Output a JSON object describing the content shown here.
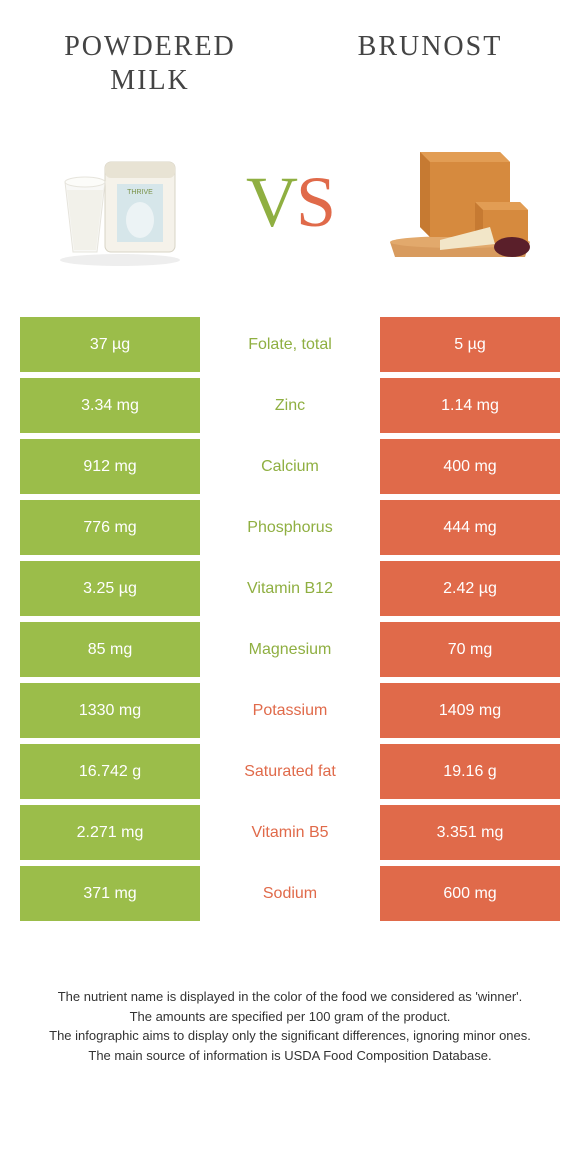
{
  "colors": {
    "left": "#9bbd4a",
    "right": "#e06a4a",
    "leftText": "#8faf41",
    "rightText": "#e06a4a",
    "bg": "#ffffff"
  },
  "header": {
    "leftTitle": "Powdered milk",
    "rightTitle": "Brunost",
    "vsV": "V",
    "vsS": "S"
  },
  "rows": [
    {
      "left": "37 µg",
      "label": "Folate, total",
      "right": "5 µg",
      "winner": "left"
    },
    {
      "left": "3.34 mg",
      "label": "Zinc",
      "right": "1.14 mg",
      "winner": "left"
    },
    {
      "left": "912 mg",
      "label": "Calcium",
      "right": "400 mg",
      "winner": "left"
    },
    {
      "left": "776 mg",
      "label": "Phosphorus",
      "right": "444 mg",
      "winner": "left"
    },
    {
      "left": "3.25 µg",
      "label": "Vitamin B12",
      "right": "2.42 µg",
      "winner": "left"
    },
    {
      "left": "85 mg",
      "label": "Magnesium",
      "right": "70 mg",
      "winner": "left"
    },
    {
      "left": "1330 mg",
      "label": "Potassium",
      "right": "1409 mg",
      "winner": "right"
    },
    {
      "left": "16.742 g",
      "label": "Saturated fat",
      "right": "19.16 g",
      "winner": "right"
    },
    {
      "left": "2.271 mg",
      "label": "Vitamin B5",
      "right": "3.351 mg",
      "winner": "right"
    },
    {
      "left": "371 mg",
      "label": "Sodium",
      "right": "600 mg",
      "winner": "right"
    }
  ],
  "footnotes": [
    "The nutrient name is displayed in the color of the food we considered as 'winner'.",
    "The amounts are specified per 100 gram of the product.",
    "The infographic aims to display only the significant differences, ignoring minor ones.",
    "The main source of information is USDA Food Composition Database."
  ]
}
